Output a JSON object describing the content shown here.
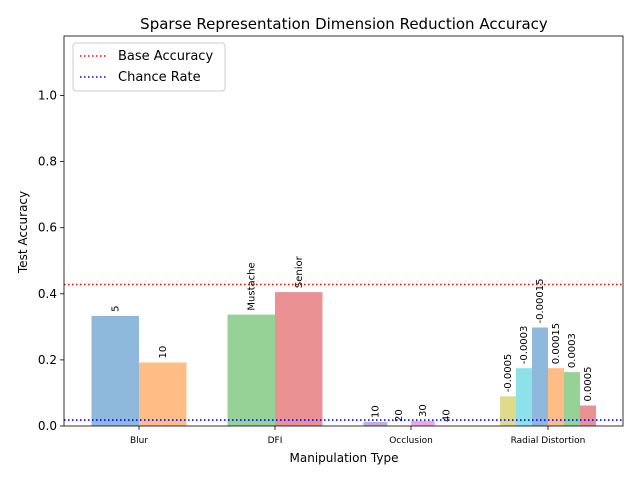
{
  "chart_data": {
    "type": "bar",
    "title": "Sparse Representation Dimension Reduction Accuracy",
    "xlabel": "Manipulation Type",
    "ylabel": "Test Accuracy",
    "ylim": [
      0,
      1.18
    ],
    "yticks": [
      "0.0",
      "0.2",
      "0.4",
      "0.6",
      "0.8",
      "1.0"
    ],
    "grid": false,
    "legend_position": "top-left",
    "reference_lines": [
      {
        "name": "Base Accuracy",
        "y": 0.428,
        "color": "#ff0000",
        "style": "dotted"
      },
      {
        "name": "Chance Rate",
        "y": 0.018,
        "color": "#0000ff",
        "style": "dotted"
      }
    ],
    "groups": [
      {
        "category": "Blur",
        "bars": [
          {
            "label": "5",
            "value": 0.333,
            "color": "#8fb9dc"
          },
          {
            "label": "10",
            "value": 0.192,
            "color": "#ffbd86"
          }
        ]
      },
      {
        "category": "DFI",
        "bars": [
          {
            "label": "Mustache",
            "value": 0.337,
            "color": "#96d196"
          },
          {
            "label": "Senior",
            "value": 0.405,
            "color": "#e99193"
          }
        ]
      },
      {
        "category": "Occlusion",
        "bars": [
          {
            "label": "10",
            "value": 0.012,
            "color": "#c2aed6"
          },
          {
            "label": "20",
            "value": 0.0,
            "color": "#c49c94"
          },
          {
            "label": "30",
            "value": 0.015,
            "color": "#f0a8dc"
          },
          {
            "label": "40",
            "value": 0.0,
            "color": "#bfbfbf"
          }
        ]
      },
      {
        "category": "Radial Distortion",
        "bars": [
          {
            "label": "-0.0005",
            "value": 0.09,
            "color": "#dedc8b"
          },
          {
            "label": "-0.0003",
            "value": 0.175,
            "color": "#8de2e9"
          },
          {
            "label": "-0.00015",
            "value": 0.298,
            "color": "#8fb9dc"
          },
          {
            "label": "0.00015",
            "value": 0.175,
            "color": "#ffbd86"
          },
          {
            "label": "0.0003",
            "value": 0.163,
            "color": "#96d196"
          },
          {
            "label": "0.0005",
            "value": 0.062,
            "color": "#e99193"
          }
        ]
      }
    ]
  }
}
